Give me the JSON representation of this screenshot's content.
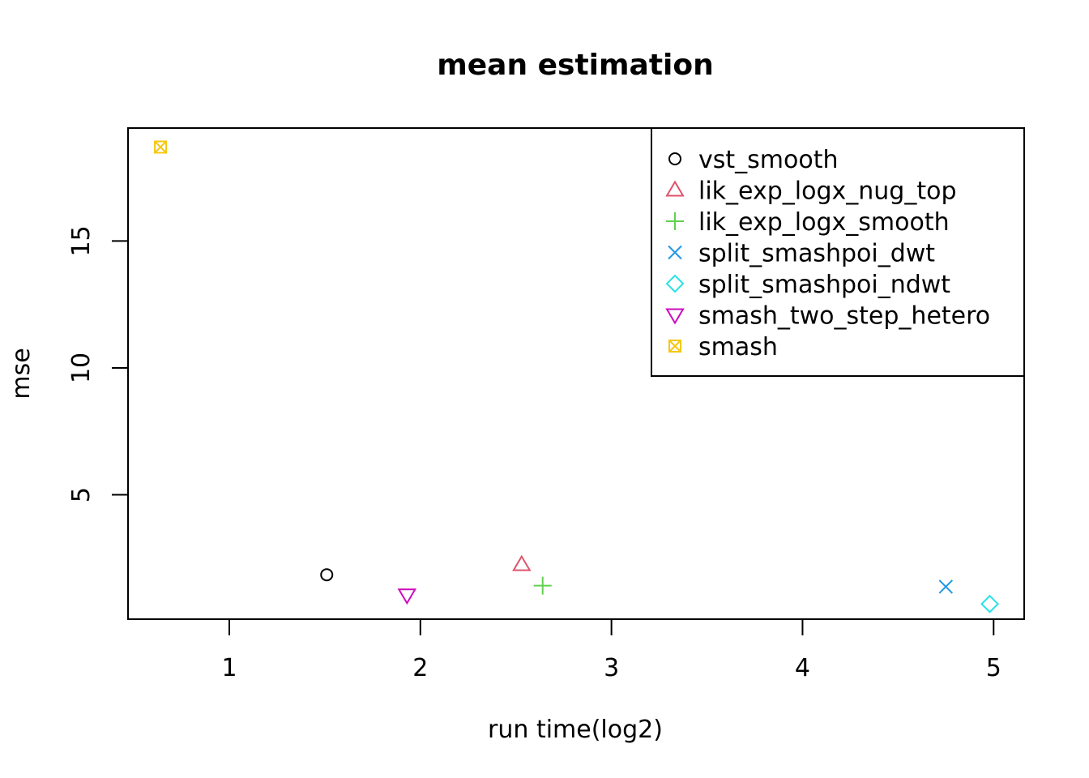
{
  "chart_data": {
    "type": "scatter",
    "title": "mean estimation",
    "xlabel": "run time(log2)",
    "ylabel": "mse",
    "xlim": [
      0.47,
      5.16
    ],
    "ylim": [
      0.1,
      19.45
    ],
    "xticks": [
      1,
      2,
      3,
      4,
      5
    ],
    "yticks": [
      5,
      10,
      15
    ],
    "grid": false,
    "legend_position": "top-right",
    "series": [
      {
        "name": "vst_smooth",
        "marker": "circle",
        "color": "#000000",
        "x": 1.51,
        "y": 1.85
      },
      {
        "name": "lik_exp_logx_nug_top",
        "marker": "triangle-up",
        "color": "#DF536B",
        "x": 2.53,
        "y": 2.25
      },
      {
        "name": "lik_exp_logx_smooth",
        "marker": "plus",
        "color": "#61D04F",
        "x": 2.64,
        "y": 1.42
      },
      {
        "name": "split_smashpoi_dwt",
        "marker": "cross",
        "color": "#2297E6",
        "x": 4.75,
        "y": 1.38
      },
      {
        "name": "split_smashpoi_ndwt",
        "marker": "diamond",
        "color": "#28E2E5",
        "x": 4.98,
        "y": 0.7
      },
      {
        "name": "smash_two_step_hetero",
        "marker": "triangle-down",
        "color": "#CD0BBC",
        "x": 1.93,
        "y": 1.05
      },
      {
        "name": "smash",
        "marker": "square-cross",
        "color": "#F5C710",
        "x": 0.64,
        "y": 18.7
      }
    ]
  }
}
